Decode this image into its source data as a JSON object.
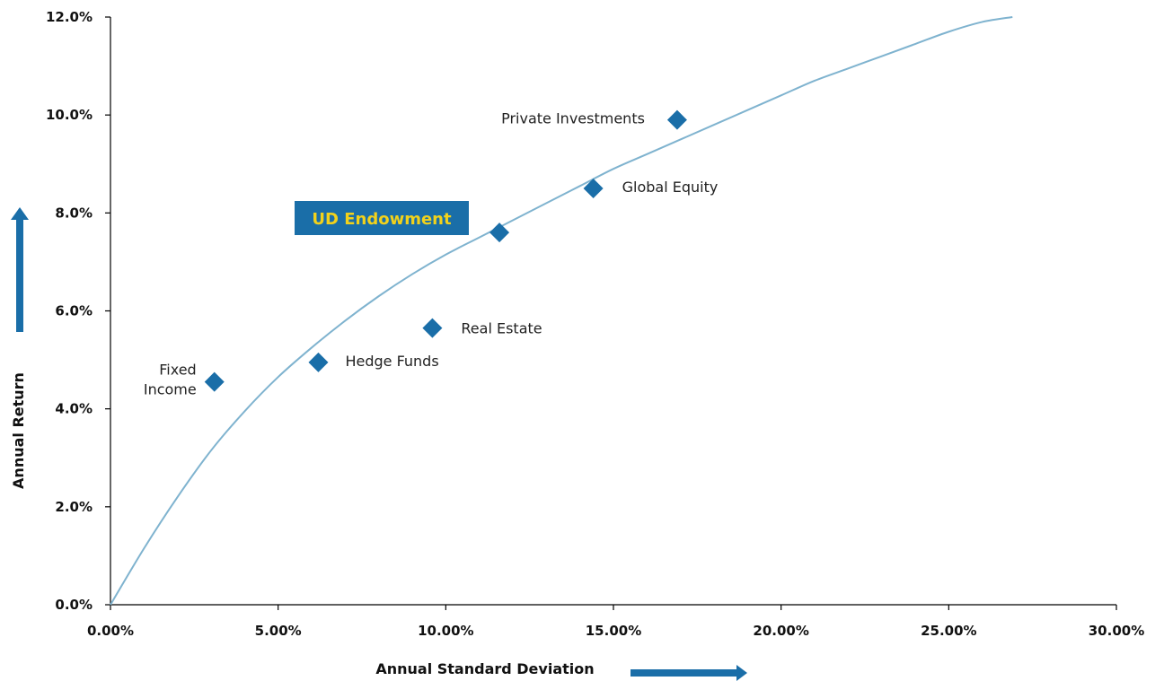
{
  "chart_data": {
    "type": "scatter",
    "xlabel": "Annual Standard Deviation",
    "ylabel": "Annual Return",
    "xlim": [
      0,
      30
    ],
    "ylim": [
      0,
      12
    ],
    "x_ticks": [
      0,
      5,
      10,
      15,
      20,
      25,
      30
    ],
    "x_tick_labels": [
      "0.00%",
      "5.00%",
      "10.00%",
      "15.00%",
      "20.00%",
      "25.00%",
      "30.00%"
    ],
    "y_ticks": [
      0,
      2,
      4,
      6,
      8,
      10,
      12
    ],
    "y_tick_labels": [
      "0.0%",
      "2.0%",
      "4.0%",
      "6.0%",
      "8.0%",
      "10.0%",
      "12.0%"
    ],
    "grid": false,
    "points": [
      {
        "label": "Fixed Income",
        "label_lines": [
          "Fixed",
          "Income"
        ],
        "x": 3.1,
        "y": 4.55
      },
      {
        "label": "Hedge Funds",
        "label_lines": [
          "Hedge Funds"
        ],
        "x": 6.2,
        "y": 4.95
      },
      {
        "label": "Real Estate",
        "label_lines": [
          "Real Estate"
        ],
        "x": 9.6,
        "y": 5.65
      },
      {
        "label": "UD Endowment",
        "label_lines": [
          ""
        ],
        "x": 11.6,
        "y": 7.6
      },
      {
        "label": "Global Equity",
        "label_lines": [
          "Global Equity"
        ],
        "x": 14.4,
        "y": 8.5
      },
      {
        "label": "Private Investments",
        "label_lines": [
          "Private Investments"
        ],
        "x": 16.9,
        "y": 9.9
      }
    ],
    "frontier_curve": {
      "x": [
        0,
        1,
        2,
        3,
        4,
        5,
        6,
        7,
        8,
        9,
        10,
        11,
        12,
        13,
        14,
        15,
        16,
        17,
        18,
        19,
        20,
        21,
        22,
        23,
        24,
        25,
        26,
        26.9
      ],
      "y": [
        0,
        1.15,
        2.2,
        3.15,
        3.95,
        4.65,
        5.25,
        5.8,
        6.3,
        6.75,
        7.15,
        7.5,
        7.85,
        8.2,
        8.55,
        8.9,
        9.2,
        9.5,
        9.8,
        10.1,
        10.4,
        10.7,
        10.95,
        11.2,
        11.45,
        11.7,
        11.9,
        12.0
      ]
    },
    "callout": {
      "text": "UD Endowment",
      "background": "#1a6ea8",
      "color": "#f2d21b"
    },
    "colors": {
      "marker": "#1a6ea8",
      "curve": "#7fb3cf",
      "arrow": "#1a6ea8"
    }
  }
}
